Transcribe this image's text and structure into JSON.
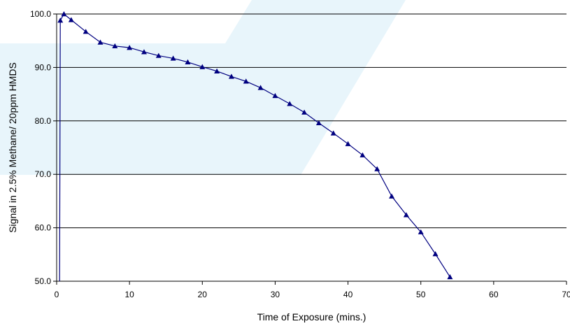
{
  "chart_data": {
    "type": "line",
    "title": "",
    "xlabel": "Time of Exposure (mins.)",
    "ylabel": "Signal in 2.5% Methane/ 20ppm HMDS",
    "xlim": [
      0,
      70
    ],
    "ylim": [
      50,
      100
    ],
    "x_ticks": [
      0,
      10,
      20,
      30,
      40,
      50,
      60,
      70
    ],
    "y_ticks": [
      50,
      60,
      70,
      80,
      90,
      100
    ],
    "x_tick_labels": [
      "0",
      "10",
      "20",
      "30",
      "40",
      "50",
      "60",
      "70"
    ],
    "y_tick_labels": [
      "50.0",
      "60.0",
      "70.0",
      "80.0",
      "90.0",
      "100.0"
    ],
    "grid": "horizontal",
    "legend": "none",
    "series": [
      {
        "color": "#000080",
        "marker": "triangle",
        "x": [
          0.5,
          1,
          2,
          4,
          6,
          8,
          10,
          12,
          14,
          16,
          18,
          20,
          22,
          24,
          26,
          28,
          30,
          32,
          34,
          36,
          38,
          40,
          42,
          44,
          46,
          48,
          50,
          52,
          54
        ],
        "y": [
          98.8,
          100.0,
          98.9,
          96.7,
          94.7,
          94.0,
          93.7,
          92.9,
          92.2,
          91.7,
          91.0,
          90.1,
          89.3,
          88.3,
          87.4,
          86.2,
          84.7,
          83.2,
          81.6,
          79.6,
          77.7,
          75.7,
          73.6,
          71.0,
          65.9,
          62.4,
          59.2,
          55.1,
          50.8
        ]
      }
    ]
  }
}
